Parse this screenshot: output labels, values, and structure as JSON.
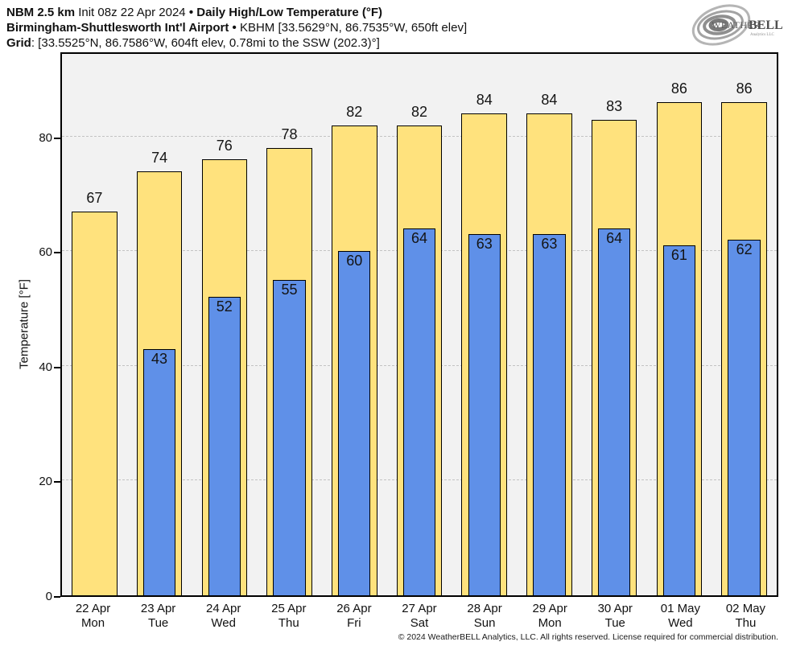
{
  "header": {
    "line1": {
      "model": "NBM 2.5 km",
      "init": "Init 08z 22 Apr 2024",
      "sep": "•",
      "product": "Daily High/Low Temperature (°F)"
    },
    "line2": {
      "station": "Birmingham-Shuttlesworth Int'l Airport",
      "sep": "•",
      "details": "KBHM [33.5629°N, 86.7535°W, 650ft elev]"
    },
    "line3": {
      "label": "Grid",
      "details": ": [33.5525°N, 86.7586°W, 604ft elev, 0.78mi to the SSW (202.3)°]"
    }
  },
  "logo": {
    "word1": "Weather",
    "word2": "BELL",
    "sub": "Analytics LLC"
  },
  "chart_data": {
    "type": "bar",
    "title": "Daily High/Low Temperature (°F)",
    "xlabel": "",
    "ylabel": "Temperature [°F]",
    "ylim": [
      0,
      95
    ],
    "yticks": [
      0,
      20,
      40,
      60,
      80
    ],
    "grid": "horizontal dash-dot at 20/40/60/80",
    "legend_position": "none",
    "categories": [
      {
        "date": "22 Apr",
        "day": "Mon"
      },
      {
        "date": "23 Apr",
        "day": "Tue"
      },
      {
        "date": "24 Apr",
        "day": "Wed"
      },
      {
        "date": "25 Apr",
        "day": "Thu"
      },
      {
        "date": "26 Apr",
        "day": "Fri"
      },
      {
        "date": "27 Apr",
        "day": "Sat"
      },
      {
        "date": "28 Apr",
        "day": "Sun"
      },
      {
        "date": "29 Apr",
        "day": "Mon"
      },
      {
        "date": "30 Apr",
        "day": "Tue"
      },
      {
        "date": "01 May",
        "day": "Wed"
      },
      {
        "date": "02 May",
        "day": "Thu"
      }
    ],
    "series": [
      {
        "name": "Daily High",
        "color": "#ffe27d",
        "values": [
          67,
          74,
          76,
          78,
          82,
          82,
          84,
          84,
          83,
          86,
          86
        ]
      },
      {
        "name": "Daily Low",
        "color": "#5f90e8",
        "values": [
          null,
          43,
          52,
          55,
          60,
          64,
          63,
          63,
          64,
          61,
          62
        ]
      }
    ]
  },
  "colors": {
    "high_bar": "#ffe27d",
    "low_bar": "#5f90e8",
    "bar_border": "#000000",
    "plot_bg": "#f2f2f2",
    "grid": "#c3c3c3"
  },
  "footer": {
    "copyright": "© 2024 WeatherBELL Analytics, LLC. All rights reserved. License required for commercial distribution."
  }
}
